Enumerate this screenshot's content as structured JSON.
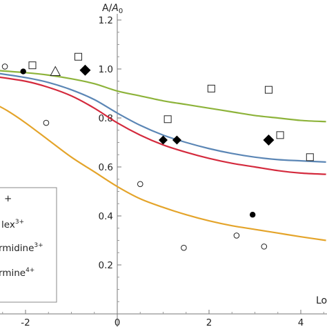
{
  "chart_data": {
    "type": "scatter",
    "title": "",
    "ylabel": "A/A0",
    "xlabel": "Lo",
    "xlim": [
      -2.7,
      4.55
    ],
    "ylim": [
      0.0,
      1.2
    ],
    "x_ticks": [
      -2,
      0,
      2,
      4
    ],
    "x_tick_labels": [
      "-2",
      "0",
      "2",
      "4"
    ],
    "y_ticks": [
      0.2,
      0.4,
      0.6,
      0.8,
      1.0,
      1.2
    ],
    "y_tick_labels": [
      "0.2",
      "0.4",
      "0.6",
      "0.8",
      "1.0",
      "1.2"
    ],
    "grid": false,
    "legend_position": "bottom-left",
    "legend_entries": [
      {
        "text": "+"
      },
      {
        "text": "lex",
        "sup": "3+"
      },
      {
        "text": "rmidine",
        "sup": "3+"
      },
      {
        "text": "rmine",
        "sup": "4+"
      }
    ],
    "curves": [
      {
        "color": "#8db33a",
        "x": [
          -2.7,
          -2.0,
          -1.5,
          -1.0,
          -0.5,
          0.0,
          0.5,
          1.0,
          1.5,
          2.0,
          2.5,
          3.0,
          3.5,
          4.0,
          4.55
        ],
        "y": [
          0.995,
          0.985,
          0.975,
          0.96,
          0.94,
          0.91,
          0.89,
          0.87,
          0.855,
          0.84,
          0.825,
          0.81,
          0.8,
          0.79,
          0.785
        ]
      },
      {
        "color": "#5b86b5",
        "x": [
          -2.7,
          -2.0,
          -1.5,
          -1.0,
          -0.5,
          0.0,
          0.5,
          1.0,
          1.5,
          2.0,
          2.5,
          3.0,
          3.5,
          4.0,
          4.55
        ],
        "y": [
          0.985,
          0.965,
          0.945,
          0.915,
          0.875,
          0.82,
          0.77,
          0.73,
          0.7,
          0.675,
          0.655,
          0.64,
          0.63,
          0.625,
          0.62
        ]
      },
      {
        "color": "#d42a3d",
        "x": [
          -2.7,
          -2.0,
          -1.5,
          -1.0,
          -0.5,
          0.0,
          0.5,
          1.0,
          1.5,
          2.0,
          2.5,
          3.0,
          3.5,
          4.0,
          4.55
        ],
        "y": [
          0.97,
          0.95,
          0.925,
          0.89,
          0.84,
          0.78,
          0.73,
          0.69,
          0.66,
          0.635,
          0.615,
          0.6,
          0.585,
          0.575,
          0.57
        ]
      },
      {
        "color": "#e4a42a",
        "x": [
          -2.7,
          -2.4,
          -2.0,
          -1.5,
          -1.0,
          -0.5,
          0.0,
          0.5,
          1.0,
          1.5,
          2.0,
          2.5,
          3.0,
          3.5,
          4.0,
          4.55
        ],
        "y": [
          0.86,
          0.83,
          0.78,
          0.71,
          0.64,
          0.58,
          0.52,
          0.47,
          0.435,
          0.405,
          0.38,
          0.36,
          0.345,
          0.33,
          0.315,
          0.3
        ]
      }
    ],
    "markers": [
      {
        "shape": "open-circle",
        "x": [
          -2.45,
          -1.55,
          0.5,
          1.45,
          2.6,
          3.2
        ],
        "y": [
          1.01,
          0.78,
          0.53,
          0.27,
          0.32,
          0.275
        ]
      },
      {
        "shape": "filled-circle",
        "x": [
          -2.05,
          2.95
        ],
        "y": [
          0.99,
          0.405
        ]
      },
      {
        "shape": "open-square",
        "x": [
          -1.85,
          -0.85,
          1.1,
          2.05,
          3.3,
          3.55,
          4.2
        ],
        "y": [
          1.015,
          1.05,
          0.795,
          0.92,
          0.915,
          0.73,
          0.64
        ]
      },
      {
        "shape": "open-triangle",
        "x": [
          -1.35
        ],
        "y": [
          0.99
        ]
      },
      {
        "shape": "filled-diamond",
        "x": [
          -0.7,
          1.0,
          1.3,
          3.3
        ],
        "y": [
          0.995,
          0.71,
          0.71,
          0.71
        ]
      }
    ]
  }
}
